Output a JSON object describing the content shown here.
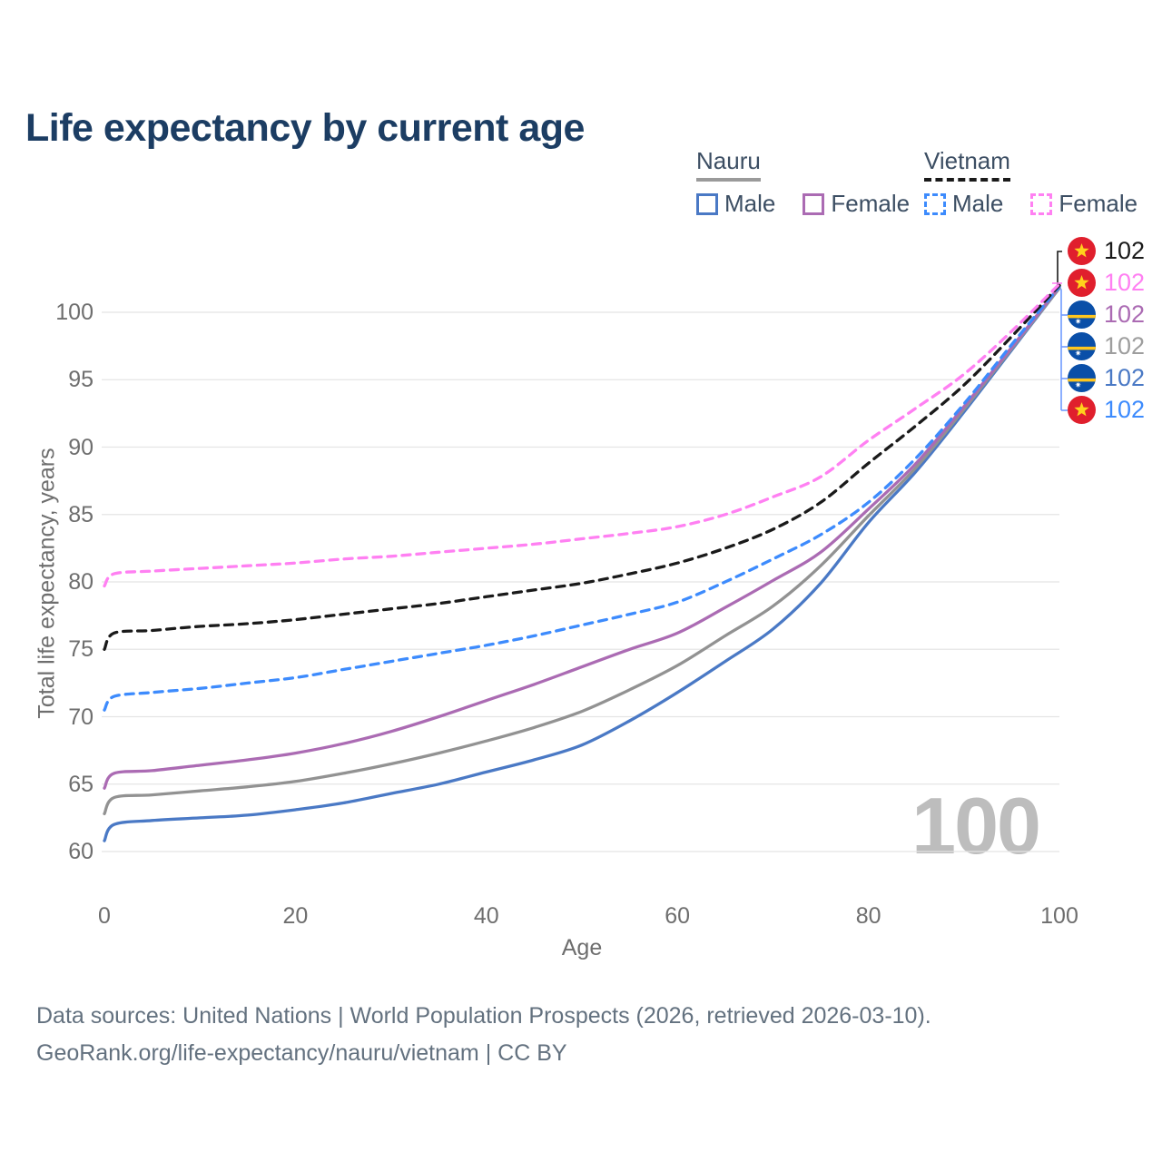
{
  "title": "Life expectancy by current age",
  "legend": {
    "groups": [
      {
        "label": "Nauru",
        "line_style": "solid",
        "underline_color": "#9a9a9a",
        "items": [
          {
            "label": "Male",
            "color": "#4a79c5",
            "dashed": false
          },
          {
            "label": "Female",
            "color": "#ab6bb3",
            "dashed": false
          }
        ]
      },
      {
        "label": "Vietnam",
        "line_style": "dashed",
        "underline_color": "#1a1a1a",
        "items": [
          {
            "label": "Male",
            "color": "#3d8bfd",
            "dashed": true
          },
          {
            "label": "Female",
            "color": "#ff80f2",
            "dashed": true
          }
        ]
      }
    ]
  },
  "chart_data": {
    "type": "line",
    "title": "Life expectancy by current age",
    "xlabel": "Age",
    "ylabel": "Total life expectancy, years",
    "xlim": [
      0,
      100
    ],
    "ylim": [
      60,
      100
    ],
    "xticks": [
      0,
      20,
      40,
      60,
      80,
      100
    ],
    "yticks": [
      60,
      65,
      70,
      75,
      80,
      85,
      90,
      95,
      100
    ],
    "grid": true,
    "legend_position": "top-right",
    "x": [
      0,
      1,
      5,
      10,
      15,
      20,
      25,
      30,
      35,
      40,
      45,
      50,
      55,
      60,
      65,
      70,
      75,
      80,
      85,
      90,
      95,
      100
    ],
    "series": [
      {
        "name": "Nauru Male",
        "country": "Nauru",
        "sex": "Male",
        "style": "solid",
        "color": "#4a79c5",
        "values": [
          60.8,
          62.0,
          62.3,
          62.5,
          62.7,
          63.1,
          63.6,
          64.3,
          65.0,
          65.9,
          66.8,
          67.9,
          69.7,
          71.8,
          74.1,
          76.5,
          79.9,
          84.4,
          88.2,
          92.6,
          97.2,
          101.8
        ]
      },
      {
        "name": "Nauru Total",
        "country": "Nauru",
        "sex": "Both sexes",
        "style": "solid",
        "color": "#929292",
        "values": [
          62.8,
          64.0,
          64.2,
          64.5,
          64.8,
          65.2,
          65.8,
          66.5,
          67.3,
          68.2,
          69.2,
          70.4,
          72.0,
          73.8,
          76.0,
          78.2,
          81.2,
          84.9,
          88.5,
          92.8,
          97.3,
          101.8
        ]
      },
      {
        "name": "Nauru Female",
        "country": "Nauru",
        "sex": "Female",
        "style": "solid",
        "color": "#ab6bb3",
        "values": [
          64.7,
          65.8,
          66.0,
          66.4,
          66.8,
          67.3,
          68.0,
          68.9,
          70.0,
          71.2,
          72.4,
          73.7,
          75.0,
          76.2,
          78.1,
          80.1,
          82.2,
          85.4,
          88.8,
          93.0,
          97.4,
          101.9
        ]
      },
      {
        "name": "Vietnam Male",
        "country": "Vietnam",
        "sex": "Male",
        "style": "dashed",
        "color": "#3d8bfd",
        "values": [
          70.5,
          71.5,
          71.8,
          72.1,
          72.5,
          72.9,
          73.5,
          74.1,
          74.7,
          75.3,
          76.0,
          76.8,
          77.6,
          78.5,
          80.0,
          81.7,
          83.5,
          85.9,
          89.2,
          93.2,
          97.6,
          101.9
        ]
      },
      {
        "name": "Vietnam Total",
        "country": "Vietnam",
        "sex": "Both sexes",
        "style": "dashed",
        "color": "#1a1a1a",
        "values": [
          75.0,
          76.2,
          76.4,
          76.7,
          76.9,
          77.2,
          77.6,
          78.0,
          78.4,
          78.9,
          79.4,
          79.9,
          80.6,
          81.4,
          82.5,
          83.9,
          85.9,
          88.8,
          91.6,
          94.6,
          98.2,
          102.0
        ]
      },
      {
        "name": "Vietnam Female",
        "country": "Vietnam",
        "sex": "Female",
        "style": "dashed",
        "color": "#ff80f2",
        "values": [
          79.7,
          80.6,
          80.8,
          81.0,
          81.2,
          81.4,
          81.7,
          81.9,
          82.2,
          82.5,
          82.8,
          83.2,
          83.6,
          84.1,
          85.0,
          86.3,
          87.8,
          90.5,
          92.9,
          95.4,
          98.6,
          102.1
        ]
      }
    ]
  },
  "end_labels": [
    {
      "value": "102",
      "flag": "vietnam",
      "color": "#1a1a1a",
      "series": "Vietnam Total"
    },
    {
      "value": "102",
      "flag": "vietnam",
      "color": "#ff80f2",
      "series": "Vietnam Female"
    },
    {
      "value": "102",
      "flag": "nauru",
      "color": "#ab6bb3",
      "series": "Nauru Female"
    },
    {
      "value": "102",
      "flag": "nauru",
      "color": "#9e9e9e",
      "series": "Nauru Total"
    },
    {
      "value": "102",
      "flag": "nauru",
      "color": "#4a79c5",
      "series": "Nauru Male"
    },
    {
      "value": "102",
      "flag": "vietnam",
      "color": "#3d8bfd",
      "series": "Vietnam Male"
    }
  ],
  "watermark": "100",
  "footer": {
    "line1": "Data sources: United Nations | World Population Prospects (2026, retrieved 2026-03-10).",
    "line2": "GeoRank.org/life-expectancy/nauru/vietnam | CC BY"
  },
  "colors": {
    "title": "#1c3d63",
    "axis_text": "#6e6e6e",
    "gridline": "#e4e4e4",
    "watermark": "#bdbdbd",
    "footer_text": "#63717f",
    "vietnam_flag_red": "#e01f2d",
    "vietnam_flag_star": "#ffd21c",
    "nauru_flag_blue": "#0a4fa8",
    "nauru_flag_stripe": "#ffc61e"
  }
}
